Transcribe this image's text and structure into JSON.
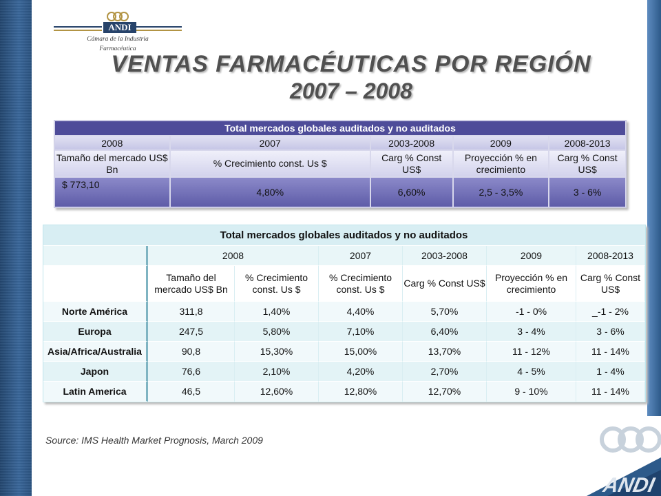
{
  "logo": {
    "word": "ANDI",
    "subtitle_line1": "Cámara de la Industria",
    "subtitle_line2": "Farmacéutica"
  },
  "title": {
    "line1": "VENTAS FARMACÉUTICAS POR REGIÓN",
    "line2": "2007 – 2008"
  },
  "table1": {
    "header": "Total mercados globales auditados y no auditados",
    "years": [
      "2008",
      "2007",
      "2003-2008",
      "2009",
      "2008-2013"
    ],
    "labels": [
      "Tamaño del mercado US$ Bn",
      "% Crecimiento const. Us $",
      "Carg % Const US$",
      "Proyección % en crecimiento",
      "Carg % Const US$"
    ],
    "values": [
      "$ 773,10",
      "4,80%",
      "6,60%",
      "2,5 - 3,5%",
      "3 - 6%"
    ]
  },
  "table2": {
    "header": "Total mercados globales auditados y no auditados",
    "years": [
      "2008",
      "2007",
      "2003-2008",
      "2009",
      "2008-2013"
    ],
    "labels": [
      "Tamaño del mercado US$ Bn",
      "% Crecimiento const. Us $",
      "% Crecimiento const. Us $",
      "Carg % Const US$",
      "Proyección % en crecimiento",
      "Carg % Const US$"
    ],
    "rows": [
      {
        "region": "Norte América",
        "cells": [
          "311,8",
          "1,40%",
          "4,40%",
          "5,70%",
          "-1 - 0%",
          "_-1 - 2%"
        ]
      },
      {
        "region": "Europa",
        "cells": [
          "247,5",
          "5,80%",
          "7,10%",
          "6,40%",
          "3 - 4%",
          "3 - 6%"
        ]
      },
      {
        "region": "Asia/Africa/Australia",
        "cells": [
          "90,8",
          "15,30%",
          "15,00%",
          "13,70%",
          "11 - 12%",
          "11 - 14%"
        ]
      },
      {
        "region": "Japon",
        "cells": [
          "76,6",
          "2,10%",
          "4,20%",
          "2,70%",
          "4 - 5%",
          "1 - 4%"
        ]
      },
      {
        "region": "Latin America",
        "cells": [
          "46,5",
          "12,60%",
          "12,80%",
          "12,70%",
          "9 - 10%",
          "11 - 14%"
        ]
      }
    ]
  },
  "source": "Source: IMS Health Market Prognosis, March 2009",
  "colors": {
    "band_blue": "#2d5a8a",
    "table1_header": "#4e4c99",
    "table1_values": "#6e6cb5",
    "table2_header": "#d8eef3",
    "title_gray": "#505050"
  }
}
